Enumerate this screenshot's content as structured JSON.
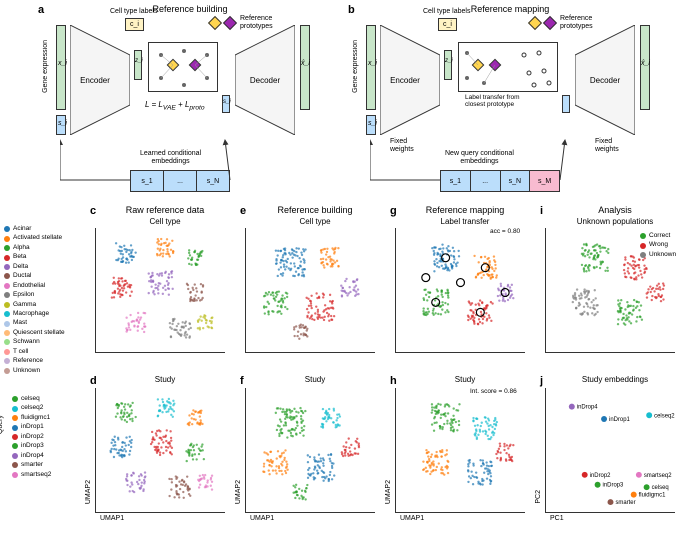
{
  "panels": {
    "a": {
      "label": "a",
      "title": "Reference building"
    },
    "b": {
      "label": "b",
      "title": "Reference mapping"
    },
    "c": {
      "label": "c",
      "title": "Raw reference data",
      "subtitle": "Cell type"
    },
    "d": {
      "label": "d",
      "subtitle": "Study"
    },
    "e": {
      "label": "e",
      "title": "Reference building",
      "subtitle": "Cell type"
    },
    "f": {
      "label": "f",
      "subtitle": "Study"
    },
    "g": {
      "label": "g",
      "title": "Reference mapping",
      "subtitle": "Label transfer",
      "metric": "acc = 0.80"
    },
    "h": {
      "label": "h",
      "subtitle": "Study",
      "metric": "Int. score = 0.86"
    },
    "i": {
      "label": "i",
      "title": "Analysis",
      "subtitle": "Unknown populations"
    },
    "j": {
      "label": "j",
      "subtitle": "Study embeddings"
    }
  },
  "arch": {
    "gene_expr": "Gene expression",
    "encoder": "Encoder",
    "decoder": "Decoder",
    "ct_labels": "Cell type labels",
    "ref_proto": "Reference\nprototypes",
    "learned_emb": "Learned conditional\nembeddings",
    "new_emb": "New query conditional\nembeddings",
    "fixed_w": "Fixed\nweights",
    "label_transfer": "Label transfer from\nclosest prototype",
    "formula": "L = L_VAE + L_proto",
    "ci": "c_i",
    "xi": "x_i",
    "xi_hat": "x̂_i",
    "zi": "z_i",
    "si": "s_i",
    "s1": "s_1",
    "sN": "s_N",
    "sM": "s_M"
  },
  "axes": {
    "umap1": "UMAP1",
    "umap2": "UMAP2",
    "pc1": "PC1",
    "pc2": "PC2"
  },
  "celltypes": [
    {
      "name": "Acinar",
      "color": "#1f77b4"
    },
    {
      "name": "Activated stellate",
      "color": "#ff7f0e"
    },
    {
      "name": "Alpha",
      "color": "#2ca02c"
    },
    {
      "name": "Beta",
      "color": "#d62728"
    },
    {
      "name": "Delta",
      "color": "#9467bd"
    },
    {
      "name": "Ductal",
      "color": "#8c564b"
    },
    {
      "name": "Endothelial",
      "color": "#e377c2"
    },
    {
      "name": "Epsilon",
      "color": "#7f7f7f"
    },
    {
      "name": "Gamma",
      "color": "#bcbd22"
    },
    {
      "name": "Macrophage",
      "color": "#17becf"
    },
    {
      "name": "Mast",
      "color": "#aec7e8"
    },
    {
      "name": "Quiescent stellate",
      "color": "#ffbb78"
    },
    {
      "name": "Schwann",
      "color": "#98df8a"
    },
    {
      "name": "T cell",
      "color": "#ff9896"
    },
    {
      "name": "Reference",
      "color": "#c5b0d5"
    },
    {
      "name": "Unknown",
      "color": "#c49c94"
    }
  ],
  "query_studies": [
    {
      "name": "celseq",
      "color": "#2ca02c"
    },
    {
      "name": "celseq2",
      "color": "#17becf"
    },
    {
      "name": "fluidigmc1",
      "color": "#ff7f0e"
    },
    {
      "name": "inDrop1",
      "color": "#1f77b4"
    },
    {
      "name": "inDrop2",
      "color": "#d62728"
    },
    {
      "name": "inDrop3",
      "color": "#2ca02c"
    },
    {
      "name": "inDrop4",
      "color": "#9467bd"
    },
    {
      "name": "smarter",
      "color": "#8c564b"
    },
    {
      "name": "smartseq2",
      "color": "#e377c2"
    }
  ],
  "query_label": "Query",
  "unknown_legend": [
    {
      "name": "Correct",
      "color": "#2ca02c"
    },
    {
      "name": "Wrong",
      "color": "#d62728"
    },
    {
      "name": "Unknown",
      "color": "#7f7f7f"
    }
  ],
  "study_points": [
    {
      "name": "inDrop4",
      "x": 20,
      "y": 15,
      "color": "#9467bd"
    },
    {
      "name": "inDrop1",
      "x": 45,
      "y": 25,
      "color": "#1f77b4"
    },
    {
      "name": "celseq2",
      "x": 80,
      "y": 22,
      "color": "#17becf"
    },
    {
      "name": "inDrop2",
      "x": 30,
      "y": 70,
      "color": "#d62728"
    },
    {
      "name": "inDrop3",
      "x": 40,
      "y": 78,
      "color": "#2ca02c"
    },
    {
      "name": "smartseq2",
      "x": 72,
      "y": 70,
      "color": "#e377c2"
    },
    {
      "name": "celseq",
      "x": 78,
      "y": 80,
      "color": "#2ca02c"
    },
    {
      "name": "fluidigmc1",
      "x": 68,
      "y": 86,
      "color": "#ff7f0e"
    },
    {
      "name": "smarter",
      "x": 50,
      "y": 92,
      "color": "#8c564b"
    }
  ],
  "colors": {
    "green_bar": "#c8e6c9",
    "blue_bar": "#bbdefb",
    "pink_bar": "#f8bbd0",
    "yellow_proto": "#ffd54f",
    "purple_proto": "#9c27b0",
    "bg": "#ffffff"
  }
}
